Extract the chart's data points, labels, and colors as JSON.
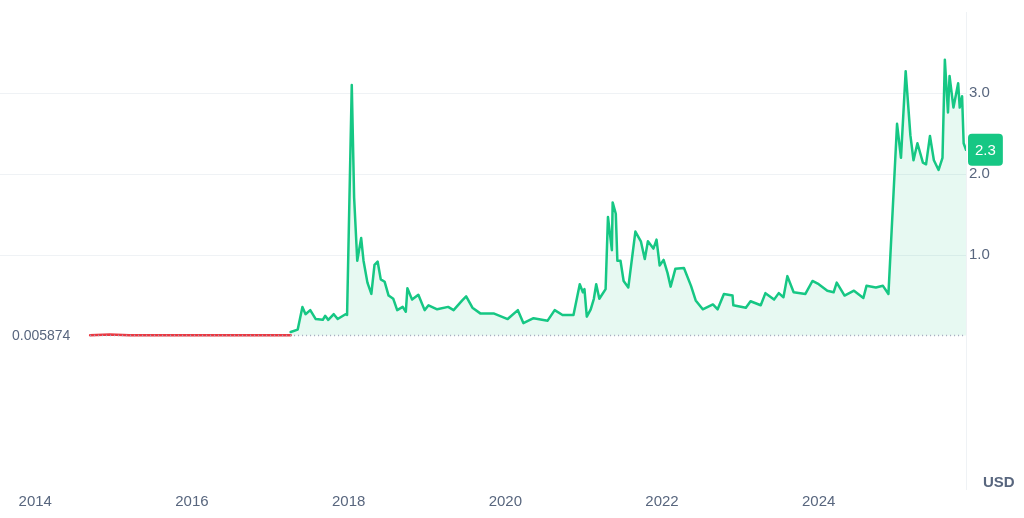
{
  "chart_data": {
    "type": "line",
    "xlim": [
      2013.55,
      2025.88
    ],
    "xticks": [
      2014,
      2016,
      2018,
      2020,
      2022,
      2024
    ],
    "ylim": [
      -1.9,
      4.0
    ],
    "yticks": [
      {
        "value": 1,
        "label": "1.0"
      },
      {
        "value": 2,
        "label": "2.0"
      },
      {
        "value": 3,
        "label": "3.0"
      }
    ],
    "grid": "y",
    "legend": false,
    "marker": "none",
    "line_style": "solid",
    "series": [
      {
        "color": "#ea3943",
        "x": [
          2014.7,
          2014.95,
          2015.2,
          2016.0,
          2017.0,
          2017.26
        ],
        "values": [
          0.01,
          0.02,
          0.01,
          0.01,
          0.01,
          0.01
        ]
      },
      {
        "type": "area",
        "color": "#16c784",
        "x": [
          2017.26,
          2017.35,
          2017.41,
          2017.45,
          2017.51,
          2017.58,
          2017.67,
          2017.7,
          2017.74,
          2017.81,
          2017.86,
          2017.96,
          2017.98,
          2018.04,
          2018.07,
          2018.11,
          2018.16,
          2018.19,
          2018.24,
          2018.29,
          2018.33,
          2018.37,
          2018.41,
          2018.46,
          2018.51,
          2018.57,
          2018.62,
          2018.69,
          2018.73,
          2018.75,
          2018.81,
          2018.89,
          2018.97,
          2019.02,
          2019.13,
          2019.27,
          2019.34,
          2019.45,
          2019.5,
          2019.58,
          2019.68,
          2019.85,
          2020.03,
          2020.16,
          2020.23,
          2020.36,
          2020.54,
          2020.63,
          2020.73,
          2020.87,
          2020.95,
          2020.99,
          2021.01,
          2021.04,
          2021.09,
          2021.13,
          2021.16,
          2021.2,
          2021.28,
          2021.31,
          2021.36,
          2021.37,
          2021.41,
          2021.43,
          2021.47,
          2021.51,
          2021.57,
          2021.66,
          2021.73,
          2021.78,
          2021.82,
          2021.89,
          2021.93,
          2021.97,
          2022.02,
          2022.07,
          2022.11,
          2022.17,
          2022.28,
          2022.37,
          2022.43,
          2022.52,
          2022.65,
          2022.71,
          2022.79,
          2022.9,
          2022.91,
          2023.07,
          2023.13,
          2023.26,
          2023.32,
          2023.43,
          2023.49,
          2023.55,
          2023.6,
          2023.68,
          2023.83,
          2023.92,
          2024.0,
          2024.11,
          2024.19,
          2024.23,
          2024.33,
          2024.45,
          2024.57,
          2024.61,
          2024.73,
          2024.82,
          2024.89,
          2025.0,
          2025.05,
          2025.11,
          2025.17,
          2025.21,
          2025.26,
          2025.33,
          2025.37,
          2025.42,
          2025.47,
          2025.53,
          2025.58,
          2025.61,
          2025.65,
          2025.67,
          2025.72,
          2025.78,
          2025.8,
          2025.83,
          2025.85,
          2025.88
        ],
        "values": [
          0.05,
          0.08,
          0.36,
          0.27,
          0.32,
          0.21,
          0.2,
          0.25,
          0.2,
          0.27,
          0.21,
          0.27,
          0.26,
          3.1,
          1.71,
          0.93,
          1.21,
          0.93,
          0.66,
          0.52,
          0.88,
          0.92,
          0.7,
          0.67,
          0.5,
          0.46,
          0.32,
          0.36,
          0.3,
          0.59,
          0.45,
          0.51,
          0.32,
          0.38,
          0.33,
          0.36,
          0.32,
          0.44,
          0.49,
          0.35,
          0.28,
          0.28,
          0.21,
          0.32,
          0.16,
          0.22,
          0.19,
          0.32,
          0.26,
          0.26,
          0.64,
          0.54,
          0.58,
          0.24,
          0.33,
          0.46,
          0.64,
          0.46,
          0.58,
          1.47,
          1.06,
          1.65,
          1.51,
          0.93,
          0.93,
          0.68,
          0.6,
          1.29,
          1.17,
          0.95,
          1.17,
          1.08,
          1.19,
          0.87,
          0.94,
          0.78,
          0.61,
          0.83,
          0.84,
          0.62,
          0.44,
          0.33,
          0.39,
          0.33,
          0.52,
          0.5,
          0.38,
          0.35,
          0.43,
          0.38,
          0.53,
          0.45,
          0.53,
          0.48,
          0.74,
          0.54,
          0.52,
          0.68,
          0.64,
          0.56,
          0.54,
          0.66,
          0.5,
          0.56,
          0.47,
          0.62,
          0.6,
          0.62,
          0.52,
          2.62,
          2.2,
          3.27,
          2.48,
          2.17,
          2.38,
          2.14,
          2.12,
          2.47,
          2.17,
          2.05,
          2.2,
          3.41,
          2.76,
          3.21,
          2.82,
          3.12,
          2.82,
          2.96,
          2.38,
          2.3
        ]
      }
    ],
    "ref_lines": [
      {
        "axis": "y",
        "value": 0.005874,
        "label": "0.005874",
        "color": "#a1a7bb",
        "line_style": "dotted"
      }
    ],
    "annotations": [
      {
        "text": "2.3",
        "x": 2025.88,
        "y": 2.3
      },
      "USD"
    ]
  }
}
